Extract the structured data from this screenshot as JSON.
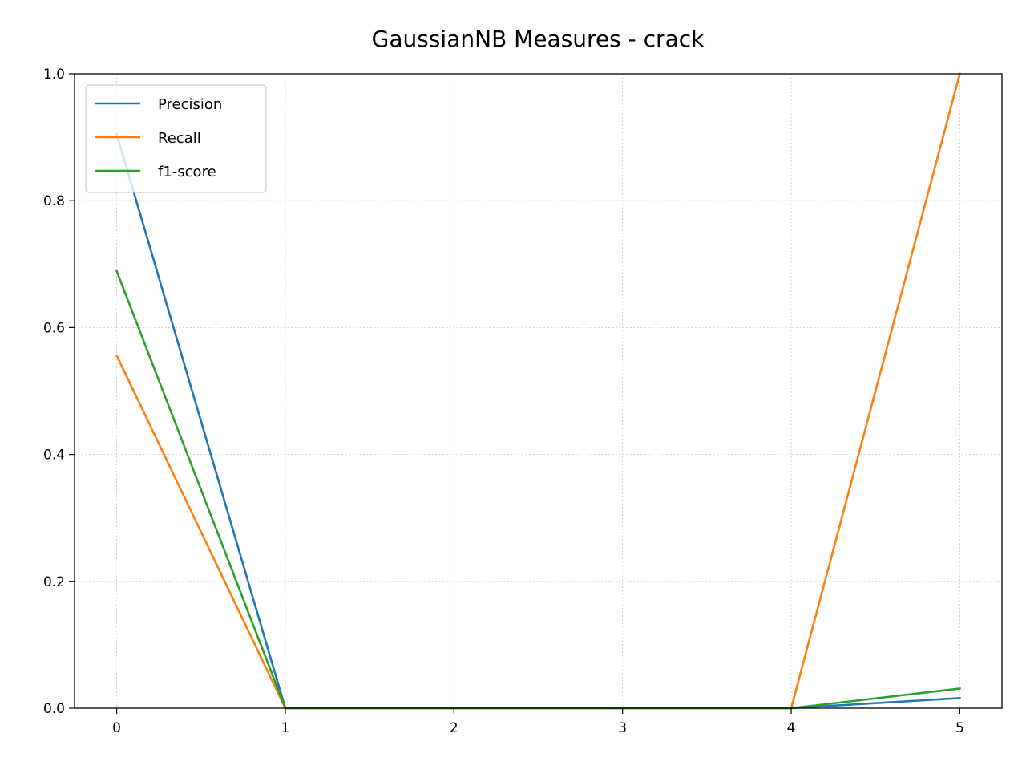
{
  "chart_data": {
    "type": "line",
    "title": "GaussianNB Measures - crack",
    "xlabel": "",
    "ylabel": "",
    "x": [
      0,
      1,
      2,
      3,
      4,
      5
    ],
    "xlim": [
      -0.25,
      5.25
    ],
    "ylim": [
      0,
      1
    ],
    "xticks": [
      "0",
      "1",
      "2",
      "3",
      "4",
      "5"
    ],
    "yticks": [
      "0.0",
      "0.2",
      "0.4",
      "0.6",
      "0.8",
      "1.0"
    ],
    "grid": true,
    "legend_position": "top-left",
    "series": [
      {
        "name": "Precision",
        "color": "#1f77b4",
        "values": [
          0.905,
          0.0,
          0.0,
          0.0,
          0.0,
          0.016
        ]
      },
      {
        "name": "Recall",
        "color": "#ff7f0e",
        "values": [
          0.556,
          0.0,
          0.0,
          0.0,
          0.0,
          1.0
        ]
      },
      {
        "name": "f1-score",
        "color": "#2ca02c",
        "values": [
          0.689,
          0.0,
          0.0,
          0.0,
          0.0,
          0.031
        ]
      }
    ]
  }
}
